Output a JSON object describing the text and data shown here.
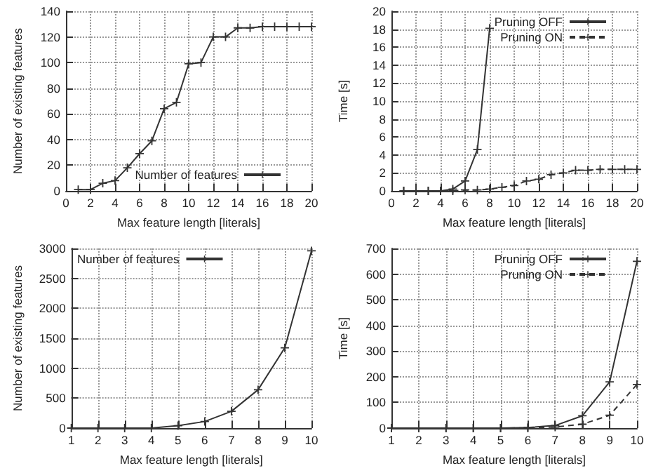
{
  "chart_data": [
    {
      "type": "line",
      "xlabel": "Max feature length [literals]",
      "ylabel": "Number of existing features",
      "xlim": [
        0,
        20
      ],
      "xticks": [
        0,
        2,
        4,
        6,
        8,
        10,
        12,
        14,
        16,
        18,
        20
      ],
      "ylim": [
        0,
        140
      ],
      "yticks": [
        0,
        20,
        40,
        60,
        80,
        100,
        120,
        140
      ],
      "grid": true,
      "legend": "bottom right",
      "marker": "cross",
      "line_style": "solid",
      "series": [
        {
          "name": "Number of features",
          "color": "#333333",
          "x": [
            1,
            2,
            3,
            4,
            5,
            6,
            7,
            8,
            9,
            10,
            11,
            12,
            13,
            14,
            15,
            16,
            17,
            18,
            19,
            20
          ],
          "values": [
            1,
            1,
            6,
            8,
            18,
            29,
            39,
            64,
            69,
            99,
            100,
            120,
            120,
            127,
            127,
            128,
            128,
            128,
            128,
            128
          ]
        }
      ]
    },
    {
      "type": "line",
      "xlabel": "Max feature length [literals]",
      "ylabel": "Time [s]",
      "xlim": [
        0,
        20
      ],
      "xticks": [
        0,
        2,
        4,
        6,
        8,
        10,
        12,
        14,
        16,
        18,
        20
      ],
      "ylim": [
        0,
        20
      ],
      "yticks": [
        0,
        2,
        4,
        6,
        8,
        10,
        12,
        14,
        16,
        18,
        20
      ],
      "grid": true,
      "legend": "top right",
      "marker": "cross",
      "series": [
        {
          "name": "Pruning OFF",
          "color": "#333333",
          "line_style": "solid",
          "x": [
            1,
            2,
            3,
            4,
            5,
            6,
            7,
            8
          ],
          "values": [
            0,
            0,
            0,
            0,
            0.2,
            1.1,
            4.6,
            18.1
          ]
        },
        {
          "name": "Pruning ON",
          "color": "#333333",
          "line_style": "dashed",
          "x": [
            1,
            2,
            3,
            4,
            5,
            6,
            7,
            8,
            9,
            10,
            11,
            12,
            13,
            14,
            15,
            16,
            17,
            18,
            19,
            20
          ],
          "values": [
            0,
            0,
            0,
            0,
            0,
            0.1,
            0.1,
            0.2,
            0.4,
            0.6,
            1.1,
            1.3,
            1.8,
            2,
            2.3,
            2.3,
            2.4,
            2.4,
            2.4,
            2.4
          ]
        }
      ]
    },
    {
      "type": "line",
      "xlabel": "Max feature length [literals]",
      "ylabel": "Number of existing features",
      "xlim": [
        1,
        10
      ],
      "xticks": [
        1,
        2,
        3,
        4,
        5,
        6,
        7,
        8,
        9,
        10
      ],
      "ylim": [
        0,
        3000
      ],
      "yticks": [
        0,
        500,
        1000,
        1500,
        2000,
        2500,
        3000
      ],
      "grid": true,
      "legend": "top left",
      "marker": "cross",
      "line_style": "solid",
      "series": [
        {
          "name": "Number of features",
          "color": "#333333",
          "x": [
            1,
            2,
            3,
            4,
            5,
            6,
            7,
            8,
            9,
            10
          ],
          "values": [
            0,
            0,
            0,
            0,
            40,
            110,
            280,
            640,
            1340,
            2960
          ]
        }
      ]
    },
    {
      "type": "line",
      "xlabel": "Max feature length [literals]",
      "ylabel": "Time [s]",
      "xlim": [
        1,
        10
      ],
      "xticks": [
        1,
        2,
        3,
        4,
        5,
        6,
        7,
        8,
        9,
        10
      ],
      "ylim": [
        0,
        700
      ],
      "yticks": [
        0,
        100,
        200,
        300,
        400,
        500,
        600,
        700
      ],
      "grid": true,
      "legend": "top right",
      "marker": "cross",
      "series": [
        {
          "name": "Pruning OFF",
          "color": "#333333",
          "line_style": "solid",
          "x": [
            1,
            2,
            3,
            4,
            5,
            6,
            7,
            8,
            9,
            10
          ],
          "values": [
            0,
            0,
            0,
            0,
            0,
            2,
            10,
            48,
            180,
            650
          ]
        },
        {
          "name": "Pruning ON",
          "color": "#333333",
          "line_style": "dashed",
          "x": [
            1,
            2,
            3,
            4,
            5,
            6,
            7,
            8,
            9,
            10
          ],
          "values": [
            0,
            0,
            0,
            0,
            0,
            1,
            4,
            15,
            50,
            170
          ]
        }
      ]
    }
  ]
}
